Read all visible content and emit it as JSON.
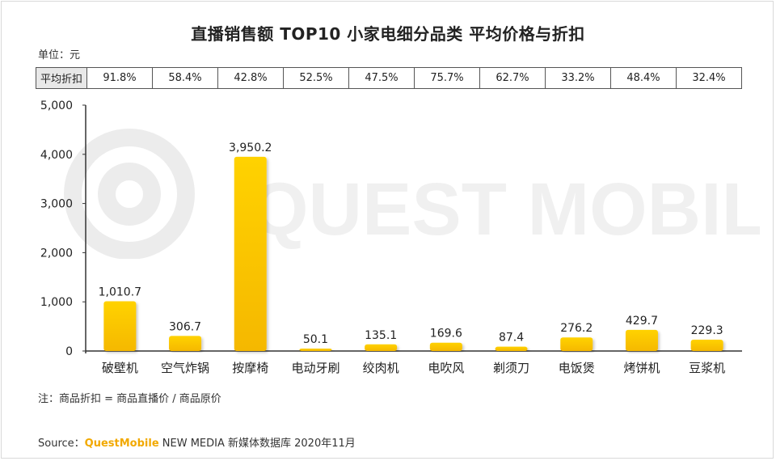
{
  "title": "直播销售额 TOP10 小家电细分品类 平均价格与折扣",
  "unit_label": "单位：元",
  "discount_row": {
    "header": "平均折扣",
    "values": [
      "91.8%",
      "58.4%",
      "42.8%",
      "52.5%",
      "47.5%",
      "75.7%",
      "62.7%",
      "33.2%",
      "48.4%",
      "32.4%"
    ]
  },
  "watermark": "QUEST MOBILE",
  "note": "注：商品折扣 = 商品直播价 / 商品原价",
  "source": {
    "prefix": "Source：",
    "brand": "QuestMobile",
    "rest": " NEW MEDIA 新媒体数据库 2020年11月"
  },
  "colors": {
    "bar_top": "#ffd200",
    "bar_bottom": "#f5b800",
    "axis": "#333333"
  },
  "chart_data": {
    "type": "bar",
    "title": "直播销售额 TOP10 小家电细分品类 平均价格与折扣",
    "xlabel": "",
    "ylabel": "单位：元",
    "ylim": [
      0,
      5000
    ],
    "yticks": [
      0,
      1000,
      2000,
      3000,
      4000,
      5000
    ],
    "ytick_labels": [
      "0",
      "1,000",
      "2,000",
      "3,000",
      "4,000",
      "5,000"
    ],
    "grid": false,
    "categories": [
      "破壁机",
      "空气炸锅",
      "按摩椅",
      "电动牙刷",
      "绞肉机",
      "电吹风",
      "剃须刀",
      "电饭煲",
      "烤饼机",
      "豆浆机"
    ],
    "values": [
      1010.7,
      306.7,
      3950.2,
      50.1,
      135.1,
      169.6,
      87.4,
      276.2,
      429.7,
      229.3
    ],
    "value_labels": [
      "1,010.7",
      "306.7",
      "3,950.2",
      "50.1",
      "135.1",
      "169.6",
      "87.4",
      "276.2",
      "429.7",
      "229.3"
    ]
  }
}
